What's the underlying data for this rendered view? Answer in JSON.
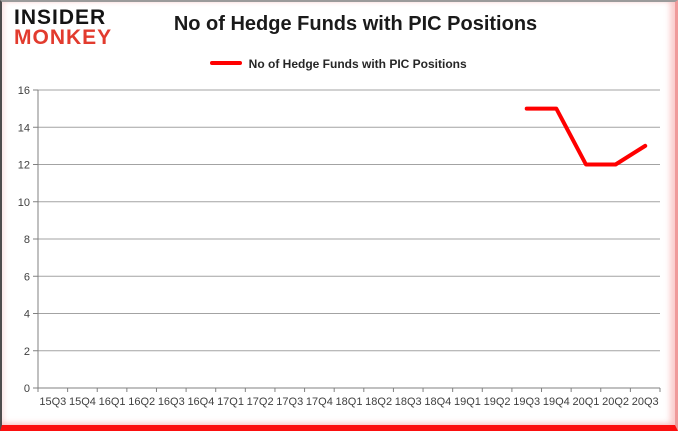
{
  "logo": {
    "line1": "INSIDER",
    "line2": "MONKEY",
    "line1_color": "#141414",
    "line2_color": "#e23b2e"
  },
  "header": {
    "title": "No of Hedge Funds with PIC Positions"
  },
  "legend": {
    "label": "No of Hedge Funds with PIC Positions",
    "swatch_color": "#ff0000"
  },
  "chart_data": {
    "type": "line",
    "title": "No of Hedge Funds with PIC Positions",
    "categories": [
      "15Q3",
      "15Q4",
      "16Q1",
      "16Q2",
      "16Q3",
      "16Q4",
      "17Q1",
      "17Q2",
      "17Q3",
      "17Q4",
      "18Q1",
      "18Q2",
      "18Q3",
      "18Q4",
      "19Q1",
      "19Q2",
      "19Q3",
      "19Q4",
      "20Q1",
      "20Q2",
      "20Q3"
    ],
    "series": [
      {
        "name": "No of Hedge Funds with PIC Positions",
        "color": "#ff0000",
        "values": [
          null,
          null,
          null,
          null,
          null,
          null,
          null,
          null,
          null,
          null,
          null,
          null,
          null,
          null,
          null,
          null,
          15,
          15,
          12,
          12,
          13
        ]
      }
    ],
    "xlabel": "",
    "ylabel": "",
    "ylim": [
      0,
      16
    ],
    "yticks": [
      0,
      2,
      4,
      6,
      8,
      10,
      12,
      14,
      16
    ],
    "grid": "horizontal",
    "legend_position": "top-center"
  },
  "colors": {
    "grid_line": "#a3a3a3",
    "axis_line": "#808080",
    "tick_label": "#404040",
    "series_line": "#ff0000",
    "frame_bottom": "#fb0f0f",
    "frame_right": "#ef9a9a",
    "frame_top": "#9b9b9b",
    "frame_left": "#4d4d4d"
  }
}
